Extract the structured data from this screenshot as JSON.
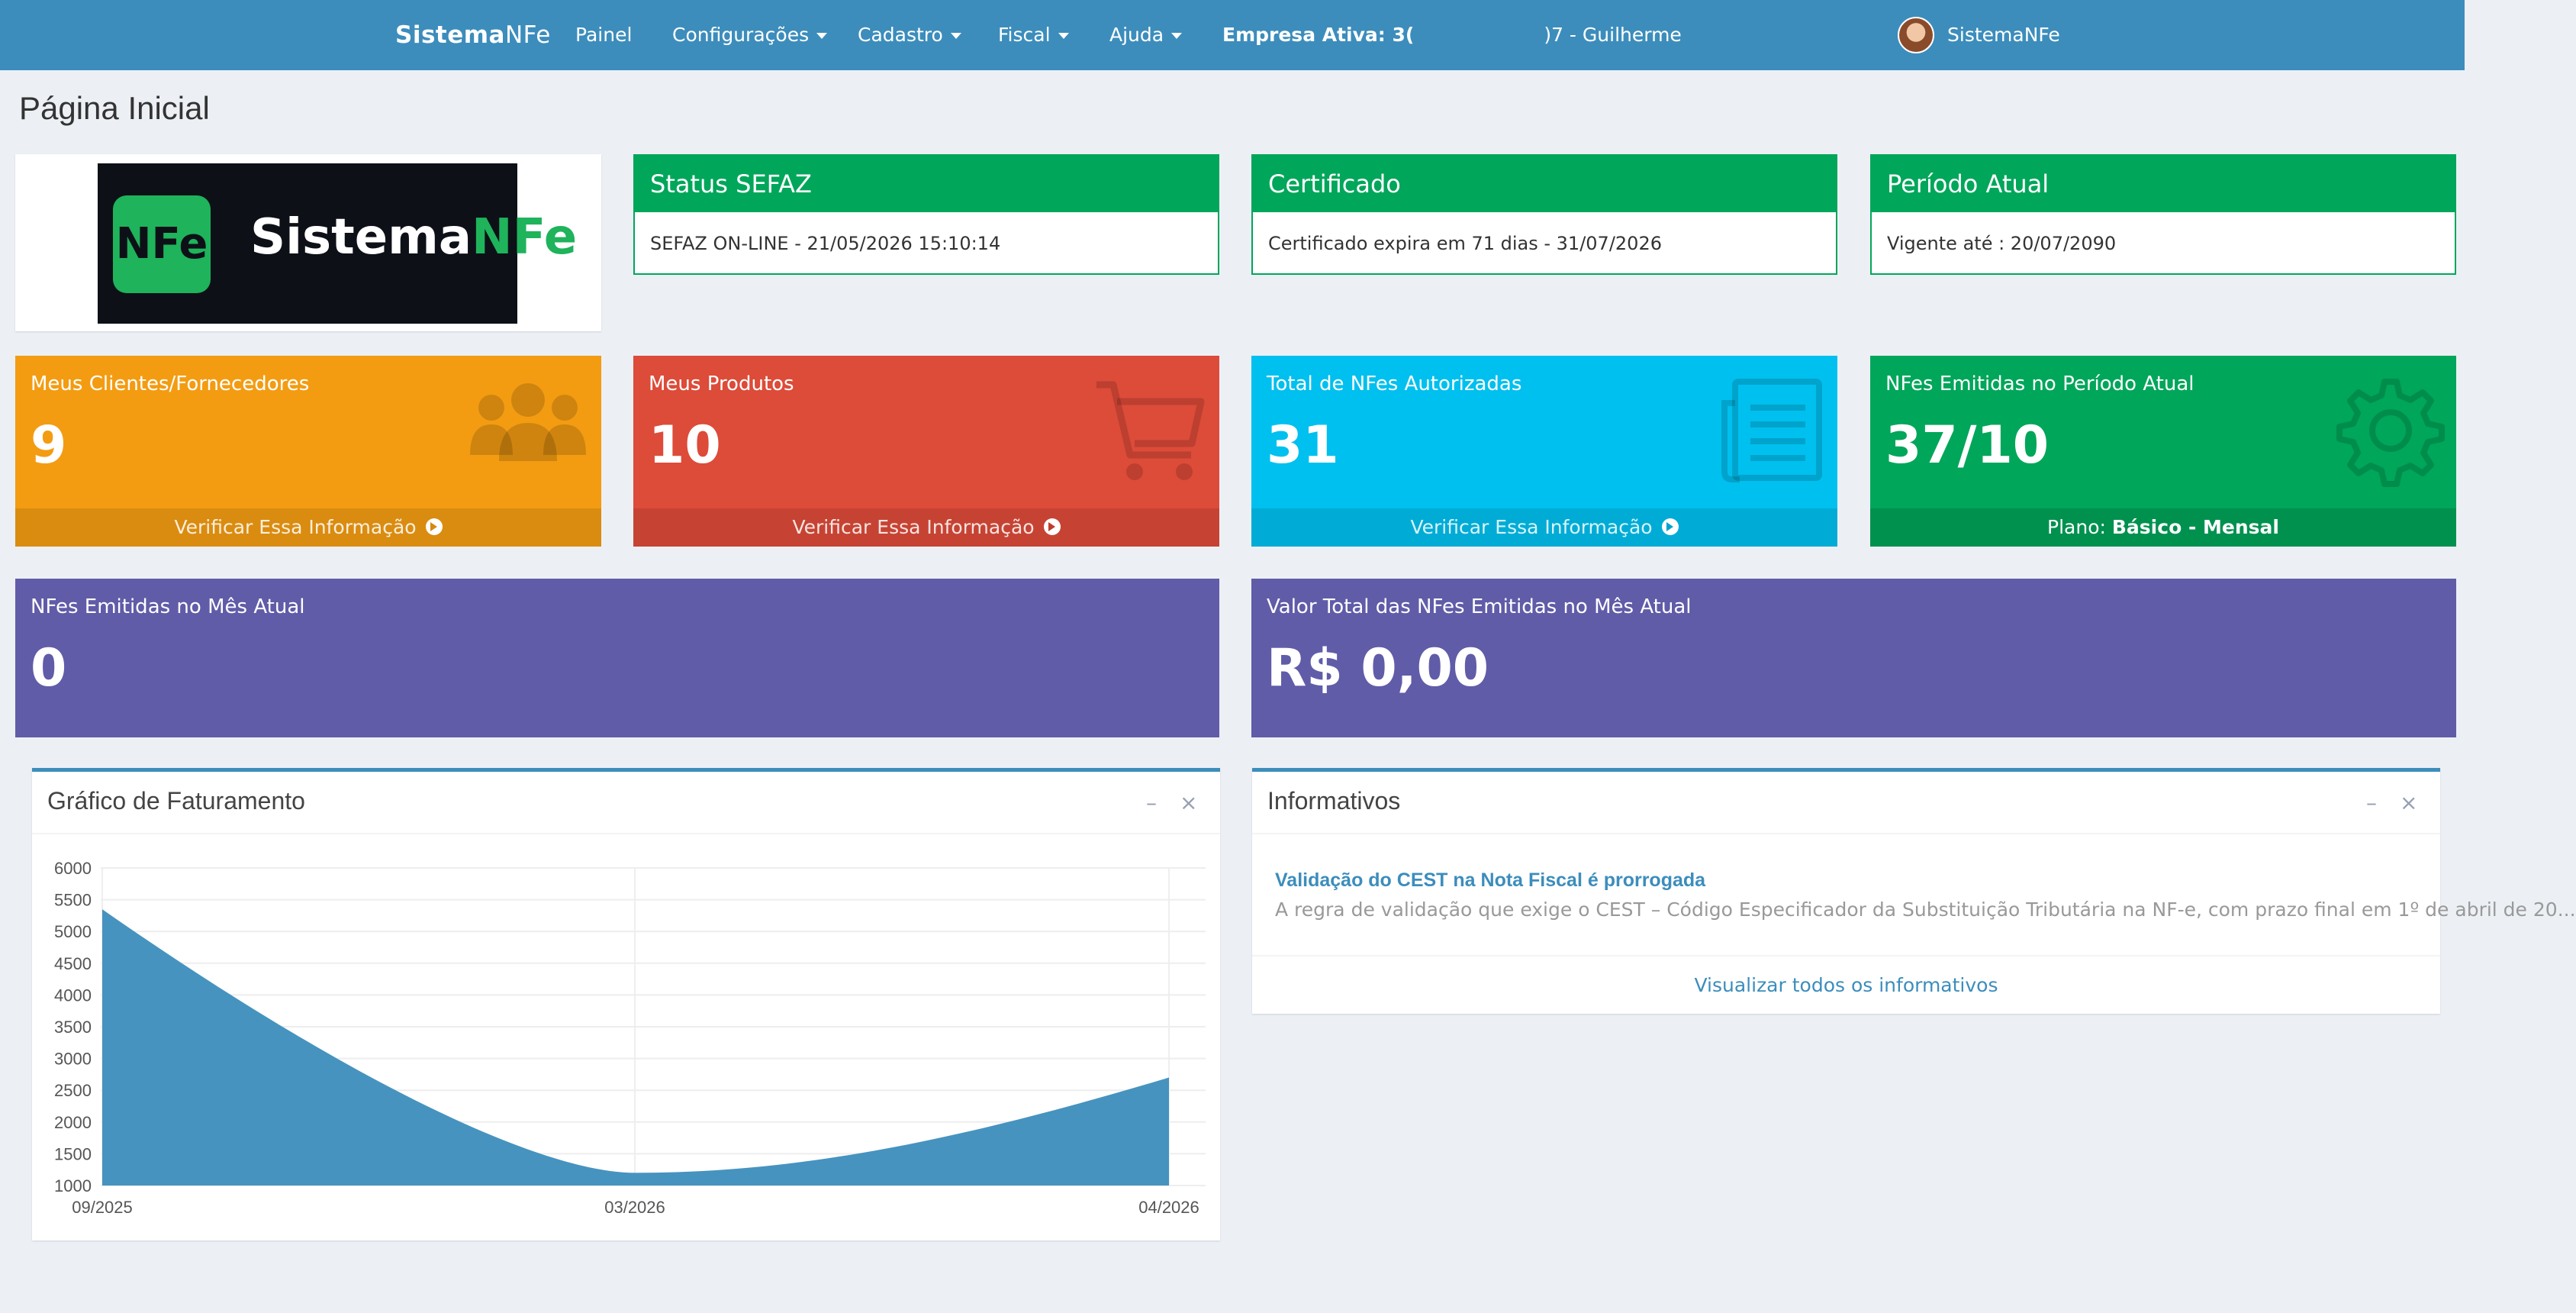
{
  "nav": {
    "brand_bold": "Sistema",
    "brand_light": "NFe",
    "items": [
      {
        "label": "Painel"
      },
      {
        "label": "Configurações"
      },
      {
        "label": "Cadastro"
      },
      {
        "label": "Fiscal"
      },
      {
        "label": "Ajuda"
      }
    ],
    "company_label": "Empresa Ativa: 3(",
    "company_rest": ")7 - Guilherme",
    "user": "SistemaNFe"
  },
  "page_title": "Página Inicial",
  "logo": {
    "badge": "NFe",
    "text_a": "Sistema",
    "text_b": "NFe"
  },
  "status": [
    {
      "title": "Status SEFAZ",
      "text": "SEFAZ ON-LINE - 21/05/2026 15:10:14"
    },
    {
      "title": "Certificado",
      "text": "Certificado expira em 71 dias - 31/07/2026"
    },
    {
      "title": "Período Atual",
      "text": "Vigente até : 20/07/2090"
    }
  ],
  "boxes": [
    {
      "label": "Meus Clientes/Fornecedores",
      "value": "9",
      "footer": "Verificar Essa Informação",
      "color": "#f39c12",
      "icon": "users-icon"
    },
    {
      "label": "Meus Produtos",
      "value": "10",
      "footer": "Verificar Essa Informação",
      "color": "#dd4b39",
      "icon": "shopping-cart-icon"
    },
    {
      "label": "Total de NFes Autorizadas",
      "value": "31",
      "footer": "Verificar Essa Informação",
      "color": "#00c0ef",
      "icon": "document-icon"
    },
    {
      "label": "NFes Emitidas no Período Atual",
      "value": "37/10",
      "footer_prefix": "Plano:",
      "footer_bold": "Básico - Mensal",
      "color": "#00a65a",
      "icon": "gear-icon"
    }
  ],
  "wide": [
    {
      "label": "NFes Emitidas no Mês Atual",
      "value": "0",
      "color": "#605ca8"
    },
    {
      "label": "Valor Total das NFes Emitidas no Mês Atual",
      "value": "R$ 0,00",
      "color": "#605ca8"
    }
  ],
  "chart_panel": {
    "title": "Gráfico de Faturamento"
  },
  "chart_data": {
    "type": "area",
    "title": "Gráfico de Faturamento",
    "x": [
      "09/2025",
      "03/2026",
      "04/2026"
    ],
    "series": [
      {
        "values": [
          5350,
          1200,
          2700
        ]
      }
    ],
    "ylim": [
      1000,
      6000
    ],
    "yticks": [
      1000,
      1500,
      2000,
      2500,
      3000,
      3500,
      4000,
      4500,
      5000,
      5500,
      6000
    ],
    "grid": true,
    "color": "#3c8dbc"
  },
  "info_panel": {
    "title": "Informativos",
    "item_title": "Validação do CEST na Nota Fiscal é prorrogada",
    "item_desc": "A regra de validação que exige o CEST – Código Especificador da Substituição Tributária na NF-e, com prazo final em 1º de abril de 20...",
    "footer": "Visualizar todos os informativos"
  }
}
